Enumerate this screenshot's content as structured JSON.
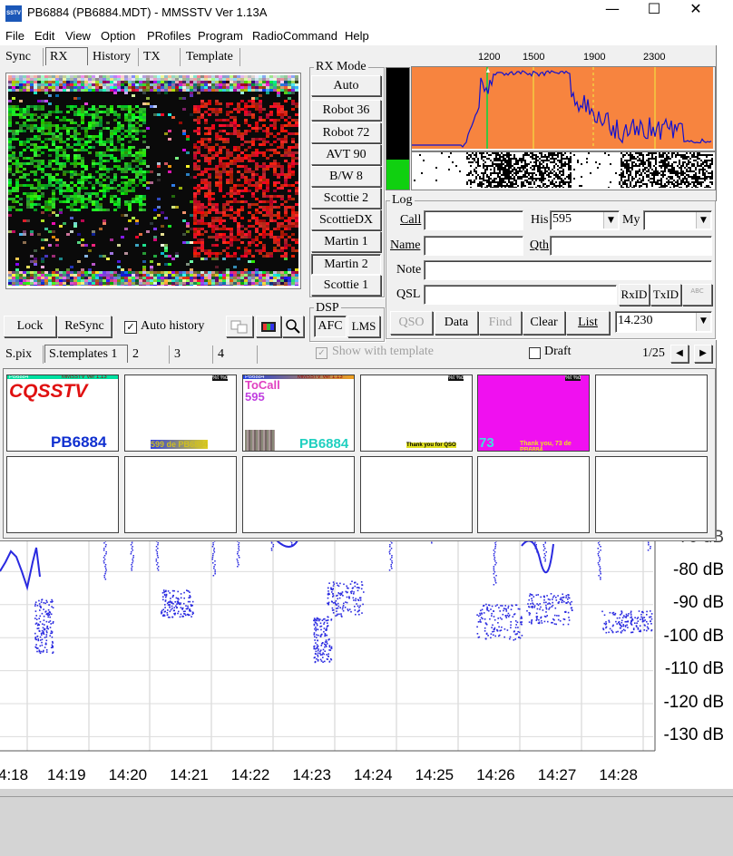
{
  "window": {
    "title": "PB6884 (PB6884.MDT) - MMSSTV Ver 1.13A",
    "app_icon": "mmsstv-app-icon",
    "controls": [
      "—",
      "☐",
      "✕"
    ]
  },
  "menu": [
    "File",
    "Edit",
    "View",
    "Option",
    "PRofiles",
    "Program",
    "RadioCommand",
    "Help"
  ],
  "tabs": [
    "Sync",
    "RX",
    "History",
    "TX",
    "Template"
  ],
  "rx_buttons": {
    "lock": "Lock",
    "resync": "ReSync",
    "auto_history": "Auto history",
    "auto_history_checked": true
  },
  "rx_mode": {
    "label": "RX Mode",
    "modes": [
      "Auto",
      "Robot 36",
      "Robot 72",
      "AVT 90",
      "B/W 8",
      "Scottie 2",
      "ScottieDX",
      "Martin 1",
      "Martin 2",
      "Scottie 1"
    ],
    "selected": "Martin 2"
  },
  "dsp": {
    "label": "DSP",
    "afc": "AFC",
    "lms": "LMS"
  },
  "spectrum": {
    "ticks": [
      "1200",
      "1500",
      "1900",
      "2300"
    ],
    "colors": {
      "bg": "#f7843f",
      "trace": "#1010d0",
      "marker_green": "#3fc43f",
      "marker_yellow": "#f0f040"
    }
  },
  "log": {
    "label": "Log",
    "call_label": "Call",
    "his_label": "His",
    "his_value": "595",
    "my_label": "My",
    "name_label": "Name",
    "qth_label": "Qth",
    "note_label": "Note",
    "qsl_label": "QSL",
    "rxid": "RxID",
    "txid": "TxID",
    "abc": "ABC",
    "qso": "QSO",
    "data": "Data",
    "find": "Find",
    "clear": "Clear",
    "list": "List",
    "freq": "14.230"
  },
  "bottom_tabs": [
    "S.pix",
    "S.templates 1",
    "2",
    "3",
    "4"
  ],
  "show_with_template": "Show with template",
  "draft": "Draft",
  "page": "1/25",
  "templates": [
    {
      "header": "PB6884",
      "top_right": "MMSSTV Ver 1.13",
      "main": "CQSSTV",
      "bottom": "PB6884"
    },
    {
      "top_right": "%t %d",
      "bottom": "599 de PB6884"
    },
    {
      "header": "PB6884",
      "top_right": "MMSSTV Ver 1.13",
      "line1": "ToCall",
      "line2": "595",
      "bottom": "PB6884"
    },
    {
      "top_right": "%t %d",
      "bottom": "Thank you for QSO"
    },
    {
      "top_right": "%t %d",
      "bottom_left": "73",
      "bottom": "Thank you, 73 de PB6884"
    }
  ],
  "plot": {
    "y_labels": [
      "-80 dB",
      "-90 dB",
      "-100 dB",
      "-110 dB",
      "-120 dB",
      "-130 dB"
    ],
    "x_labels": [
      "4:18",
      "14:19",
      "14:20",
      "14:21",
      "14:22",
      "14:23",
      "14:24",
      "14:25",
      "14:26",
      "14:27",
      "14:28"
    ],
    "top_partial": "70 dB",
    "trace_color": "#2a2ae0"
  }
}
